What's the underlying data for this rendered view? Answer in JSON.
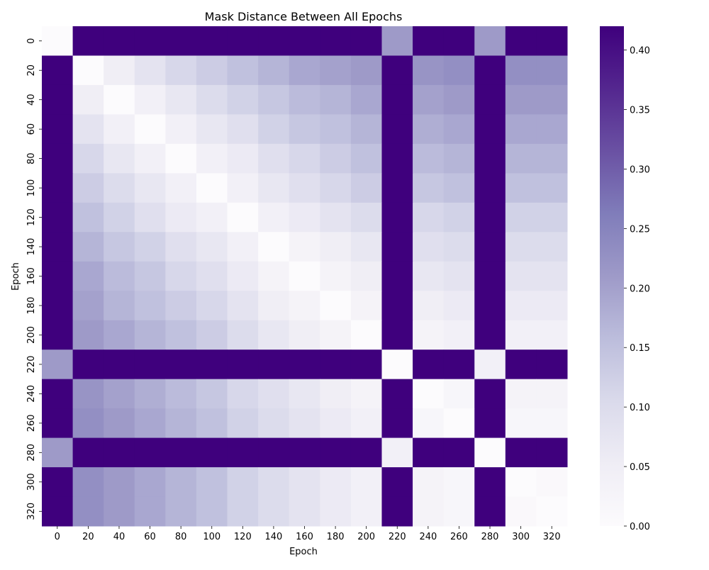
{
  "chart_data": {
    "type": "heatmap",
    "title": "Mask Distance Between All Epochs",
    "xlabel": "Epoch",
    "ylabel": "Epoch",
    "x_categories": [
      "0",
      "20",
      "40",
      "60",
      "80",
      "100",
      "120",
      "140",
      "160",
      "180",
      "200",
      "220",
      "240",
      "260",
      "280",
      "300",
      "320"
    ],
    "y_categories": [
      "0",
      "20",
      "40",
      "60",
      "80",
      "100",
      "120",
      "140",
      "160",
      "180",
      "200",
      "220",
      "240",
      "260",
      "280",
      "300",
      "320"
    ],
    "colorbar": {
      "colormap": "Purples",
      "vmin": 0.0,
      "vmax": 0.42,
      "ticks": [
        "0.00",
        "0.05",
        "0.10",
        "0.15",
        "0.20",
        "0.25",
        "0.30",
        "0.35",
        "0.40"
      ]
    },
    "values": [
      [
        0.0,
        0.42,
        0.42,
        0.42,
        0.42,
        0.42,
        0.42,
        0.42,
        0.42,
        0.42,
        0.42,
        0.21,
        0.42,
        0.42,
        0.21,
        0.42,
        0.42
      ],
      [
        0.42,
        0.0,
        0.05,
        0.08,
        0.11,
        0.13,
        0.15,
        0.17,
        0.19,
        0.2,
        0.21,
        0.42,
        0.22,
        0.23,
        0.42,
        0.23,
        0.23
      ],
      [
        0.42,
        0.05,
        0.0,
        0.04,
        0.07,
        0.1,
        0.12,
        0.14,
        0.16,
        0.17,
        0.19,
        0.42,
        0.2,
        0.21,
        0.42,
        0.21,
        0.21
      ],
      [
        0.42,
        0.08,
        0.04,
        0.0,
        0.04,
        0.07,
        0.09,
        0.12,
        0.14,
        0.15,
        0.17,
        0.42,
        0.18,
        0.19,
        0.42,
        0.19,
        0.19
      ],
      [
        0.42,
        0.11,
        0.07,
        0.04,
        0.0,
        0.04,
        0.06,
        0.09,
        0.11,
        0.13,
        0.15,
        0.42,
        0.16,
        0.17,
        0.42,
        0.17,
        0.17
      ],
      [
        0.42,
        0.13,
        0.1,
        0.07,
        0.04,
        0.0,
        0.04,
        0.07,
        0.09,
        0.11,
        0.13,
        0.42,
        0.14,
        0.15,
        0.42,
        0.15,
        0.15
      ],
      [
        0.42,
        0.15,
        0.12,
        0.09,
        0.06,
        0.04,
        0.0,
        0.04,
        0.06,
        0.08,
        0.1,
        0.42,
        0.11,
        0.12,
        0.42,
        0.12,
        0.12
      ],
      [
        0.42,
        0.17,
        0.14,
        0.12,
        0.09,
        0.07,
        0.04,
        0.0,
        0.03,
        0.05,
        0.07,
        0.42,
        0.09,
        0.1,
        0.42,
        0.1,
        0.1
      ],
      [
        0.42,
        0.19,
        0.16,
        0.14,
        0.11,
        0.09,
        0.06,
        0.03,
        0.0,
        0.03,
        0.05,
        0.42,
        0.07,
        0.08,
        0.42,
        0.08,
        0.08
      ],
      [
        0.42,
        0.2,
        0.17,
        0.15,
        0.13,
        0.11,
        0.08,
        0.05,
        0.03,
        0.0,
        0.03,
        0.42,
        0.05,
        0.06,
        0.42,
        0.06,
        0.06
      ],
      [
        0.42,
        0.21,
        0.19,
        0.17,
        0.15,
        0.13,
        0.1,
        0.07,
        0.05,
        0.03,
        0.0,
        0.42,
        0.03,
        0.04,
        0.42,
        0.04,
        0.04
      ],
      [
        0.21,
        0.42,
        0.42,
        0.42,
        0.42,
        0.42,
        0.42,
        0.42,
        0.42,
        0.42,
        0.42,
        0.0,
        0.42,
        0.42,
        0.04,
        0.42,
        0.42
      ],
      [
        0.42,
        0.22,
        0.2,
        0.18,
        0.16,
        0.14,
        0.11,
        0.09,
        0.07,
        0.05,
        0.03,
        0.42,
        0.0,
        0.02,
        0.42,
        0.03,
        0.03
      ],
      [
        0.42,
        0.23,
        0.21,
        0.19,
        0.17,
        0.15,
        0.12,
        0.1,
        0.08,
        0.06,
        0.04,
        0.42,
        0.02,
        0.0,
        0.42,
        0.02,
        0.02
      ],
      [
        0.21,
        0.42,
        0.42,
        0.42,
        0.42,
        0.42,
        0.42,
        0.42,
        0.42,
        0.42,
        0.42,
        0.04,
        0.42,
        0.42,
        0.0,
        0.42,
        0.42
      ],
      [
        0.42,
        0.23,
        0.21,
        0.19,
        0.17,
        0.15,
        0.12,
        0.1,
        0.08,
        0.06,
        0.04,
        0.42,
        0.03,
        0.02,
        0.42,
        0.0,
        0.01
      ],
      [
        0.42,
        0.23,
        0.21,
        0.19,
        0.17,
        0.15,
        0.12,
        0.1,
        0.08,
        0.06,
        0.04,
        0.42,
        0.03,
        0.02,
        0.42,
        0.01,
        0.0
      ]
    ]
  }
}
